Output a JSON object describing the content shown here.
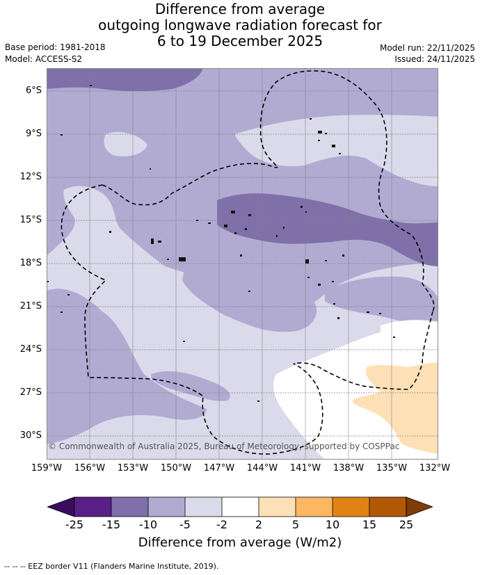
{
  "title": {
    "line1": "Difference from average",
    "line2": "outgoing longwave radiation forecast for",
    "line3": "6 to 19 December 2025"
  },
  "meta": {
    "base_period": "Base period: 1981-2018",
    "model": "Model: ACCESS-S2",
    "model_run": "Model run: 22/11/2025",
    "issued": "Issued: 24/11/2025"
  },
  "map": {
    "lat_labels": [
      "6°S",
      "9°S",
      "12°S",
      "15°S",
      "18°S",
      "21°S",
      "24°S",
      "27°S",
      "30°S"
    ],
    "lon_labels": [
      "159°W",
      "156°W",
      "153°W",
      "150°W",
      "147°W",
      "144°W",
      "141°W",
      "138°W",
      "135°W",
      "132°W"
    ],
    "copyright": "© Commonwealth of Australia 2025, Bureau of Meteorology, supported by COSPPac"
  },
  "colorbar": {
    "ticks": [
      "-25",
      "-15",
      "-10",
      "-5",
      "-2",
      "2",
      "5",
      "10",
      "15",
      "25"
    ],
    "title": "Difference from average (W/m2)",
    "colors": {
      "under": "#3a0d5e",
      "c1": "#5a2086",
      "c2": "#7f70aa",
      "c3": "#b1abd2",
      "c4": "#dadaeb",
      "c5": "#ffffff",
      "c6": "#fee0b6",
      "c7": "#fdb763",
      "c8": "#e08214",
      "c9": "#b35806",
      "over": "#7f3b08"
    }
  },
  "legend": {
    "eez": "-- -- -- EEZ border V11 (Flanders Marine Institute, 2019)."
  }
}
